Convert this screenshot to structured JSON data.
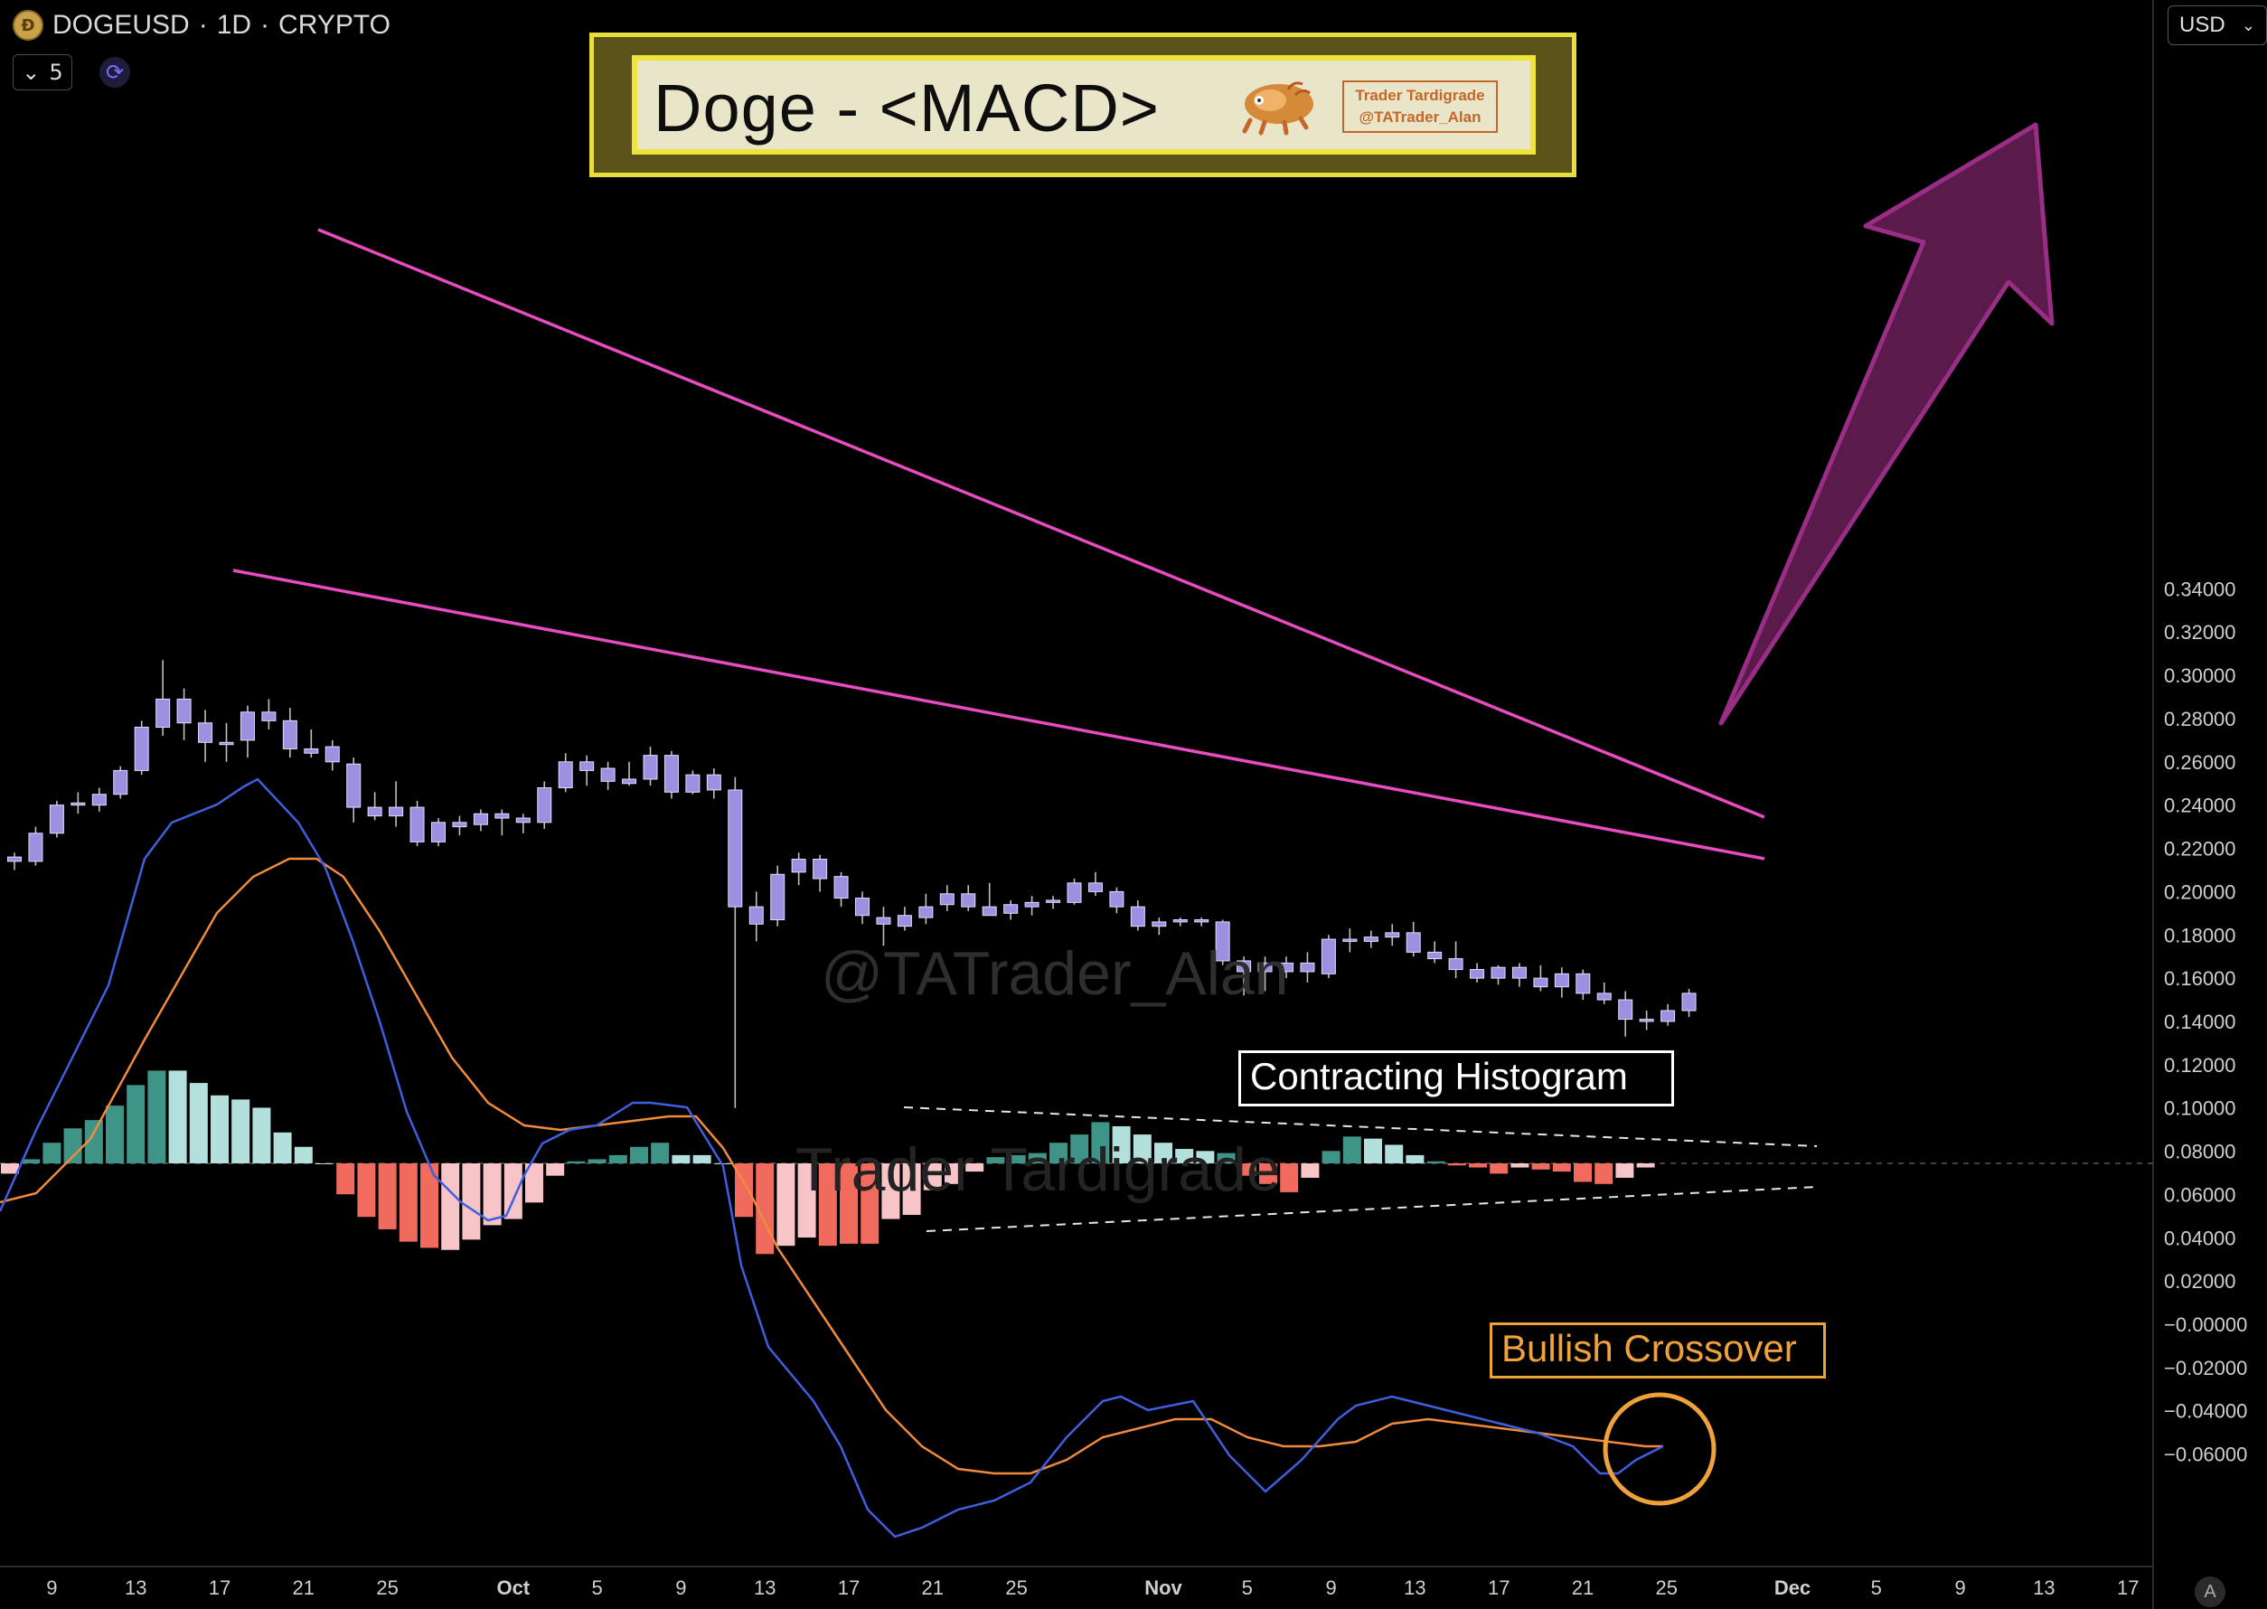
{
  "header": {
    "symbol": "DOGEUSD",
    "interval": "1D",
    "market": "CRYPTO",
    "separator": "·",
    "indicator_count": "5",
    "currency": "USD"
  },
  "title_banner": {
    "title": "Doge - <MACD>",
    "brand_line1": "Trader Tardigrade",
    "brand_line2": "@TATrader_Alan"
  },
  "watermarks": {
    "handle": "@TATrader_Alan",
    "name": "Trader Tardigrade"
  },
  "annotations": {
    "contracting": "Contracting Histogram",
    "crossover": "Bullish Crossover"
  },
  "colors": {
    "candle_body": "#9e8fe0",
    "candle_wick": "#bfbfbf",
    "trendline": "#e94bc0",
    "macd_line": "#3f5fe0",
    "signal_line": "#f08a3c",
    "hist_pos_strong": "#3f9488",
    "hist_pos_weak": "#b3e0dc",
    "hist_neg_strong": "#f06a5e",
    "hist_neg_weak": "#f7c4c7",
    "arrow_fill": "#5a1a4a",
    "arrow_stroke": "#9a2e86",
    "annotation_white": "#ffffff",
    "annotation_orange": "#f0a23a"
  },
  "chart_data": {
    "type": "candlestick",
    "title": "Doge - <MACD>",
    "y_axis": {
      "ylim": [
        -0.068,
        0.35
      ],
      "ticks": [
        0.34,
        0.32,
        0.3,
        0.28,
        0.26,
        0.24,
        0.22,
        0.2,
        0.18,
        0.16,
        0.14,
        0.12,
        0.1,
        0.08,
        0.06,
        0.04,
        0.02,
        -0.0,
        -0.02,
        -0.04,
        -0.06
      ],
      "tick_labels": [
        "0.34000",
        "0.32000",
        "0.30000",
        "0.28000",
        "0.26000",
        "0.24000",
        "0.22000",
        "0.20000",
        "0.18000",
        "0.16000",
        "0.14000",
        "0.12000",
        "0.10000",
        "0.08000",
        "0.06000",
        "0.04000",
        "0.02000",
        "−0.00000",
        "−0.02000",
        "−0.04000",
        "−0.06000"
      ]
    },
    "x_axis": {
      "range_days": [
        -0.8,
        50.2
      ],
      "day0_date": "Sep 7",
      "ticks": [
        {
          "day": 2,
          "label": "9"
        },
        {
          "day": 6,
          "label": "13"
        },
        {
          "day": 10,
          "label": "17"
        },
        {
          "day": 14,
          "label": "21"
        },
        {
          "day": 18,
          "label": "25"
        },
        {
          "day": 24,
          "label": "Oct",
          "bold": true
        },
        {
          "day": 28,
          "label": "5"
        },
        {
          "day": 32,
          "label": "9"
        },
        {
          "day": 36,
          "label": "13"
        },
        {
          "day": 40,
          "label": "17"
        },
        {
          "day": 44,
          "label": "21"
        },
        {
          "day": 48,
          "label": "25"
        },
        {
          "day": 55,
          "label": "Nov",
          "bold": true
        },
        {
          "day": 59,
          "label": "5"
        },
        {
          "day": 63,
          "label": "9"
        },
        {
          "day": 67,
          "label": "13"
        },
        {
          "day": 71,
          "label": "17"
        },
        {
          "day": 75,
          "label": "21"
        },
        {
          "day": 79,
          "label": "25"
        },
        {
          "day": 85,
          "label": "Dec",
          "bold": true
        },
        {
          "day": 89,
          "label": "5"
        },
        {
          "day": 93,
          "label": "9"
        },
        {
          "day": 97,
          "label": "13"
        },
        {
          "day": 101,
          "label": "17"
        }
      ]
    },
    "candles": [
      {
        "d": 0,
        "o": 0.214,
        "h": 0.218,
        "l": 0.21,
        "c": 0.216
      },
      {
        "d": 1,
        "o": 0.214,
        "h": 0.23,
        "l": 0.212,
        "c": 0.227
      },
      {
        "d": 2,
        "o": 0.227,
        "h": 0.242,
        "l": 0.225,
        "c": 0.24
      },
      {
        "d": 3,
        "o": 0.24,
        "h": 0.246,
        "l": 0.236,
        "c": 0.241
      },
      {
        "d": 4,
        "o": 0.24,
        "h": 0.248,
        "l": 0.237,
        "c": 0.245
      },
      {
        "d": 5,
        "o": 0.245,
        "h": 0.258,
        "l": 0.243,
        "c": 0.256
      },
      {
        "d": 6,
        "o": 0.256,
        "h": 0.279,
        "l": 0.254,
        "c": 0.276
      },
      {
        "d": 7,
        "o": 0.276,
        "h": 0.307,
        "l": 0.272,
        "c": 0.289
      },
      {
        "d": 8,
        "o": 0.289,
        "h": 0.294,
        "l": 0.27,
        "c": 0.278
      },
      {
        "d": 9,
        "o": 0.278,
        "h": 0.284,
        "l": 0.26,
        "c": 0.269
      },
      {
        "d": 10,
        "o": 0.269,
        "h": 0.278,
        "l": 0.26,
        "c": 0.268
      },
      {
        "d": 11,
        "o": 0.27,
        "h": 0.286,
        "l": 0.262,
        "c": 0.283
      },
      {
        "d": 12,
        "o": 0.283,
        "h": 0.289,
        "l": 0.275,
        "c": 0.279
      },
      {
        "d": 13,
        "o": 0.279,
        "h": 0.285,
        "l": 0.262,
        "c": 0.266
      },
      {
        "d": 14,
        "o": 0.266,
        "h": 0.275,
        "l": 0.262,
        "c": 0.264
      },
      {
        "d": 15,
        "o": 0.267,
        "h": 0.27,
        "l": 0.256,
        "c": 0.26
      },
      {
        "d": 16,
        "o": 0.259,
        "h": 0.262,
        "l": 0.232,
        "c": 0.239
      },
      {
        "d": 17,
        "o": 0.239,
        "h": 0.246,
        "l": 0.233,
        "c": 0.235
      },
      {
        "d": 18,
        "o": 0.239,
        "h": 0.251,
        "l": 0.23,
        "c": 0.235
      },
      {
        "d": 19,
        "o": 0.239,
        "h": 0.242,
        "l": 0.221,
        "c": 0.223
      },
      {
        "d": 20,
        "o": 0.223,
        "h": 0.234,
        "l": 0.221,
        "c": 0.232
      },
      {
        "d": 21,
        "o": 0.23,
        "h": 0.235,
        "l": 0.226,
        "c": 0.232
      },
      {
        "d": 22,
        "o": 0.231,
        "h": 0.238,
        "l": 0.228,
        "c": 0.236
      },
      {
        "d": 23,
        "o": 0.236,
        "h": 0.238,
        "l": 0.226,
        "c": 0.234
      },
      {
        "d": 24,
        "o": 0.232,
        "h": 0.236,
        "l": 0.227,
        "c": 0.234
      },
      {
        "d": 25,
        "o": 0.232,
        "h": 0.251,
        "l": 0.229,
        "c": 0.248
      },
      {
        "d": 26,
        "o": 0.248,
        "h": 0.264,
        "l": 0.246,
        "c": 0.26
      },
      {
        "d": 27,
        "o": 0.26,
        "h": 0.263,
        "l": 0.249,
        "c": 0.256
      },
      {
        "d": 28,
        "o": 0.257,
        "h": 0.26,
        "l": 0.247,
        "c": 0.251
      },
      {
        "d": 29,
        "o": 0.252,
        "h": 0.26,
        "l": 0.249,
        "c": 0.25
      },
      {
        "d": 30,
        "o": 0.252,
        "h": 0.267,
        "l": 0.249,
        "c": 0.263
      },
      {
        "d": 31,
        "o": 0.263,
        "h": 0.265,
        "l": 0.243,
        "c": 0.246
      },
      {
        "d": 32,
        "o": 0.246,
        "h": 0.256,
        "l": 0.245,
        "c": 0.254
      },
      {
        "d": 33,
        "o": 0.254,
        "h": 0.257,
        "l": 0.243,
        "c": 0.247
      },
      {
        "d": 34,
        "o": 0.247,
        "h": 0.253,
        "l": 0.1,
        "c": 0.193
      },
      {
        "d": 35,
        "o": 0.185,
        "h": 0.2,
        "l": 0.177,
        "c": 0.193
      },
      {
        "d": 36,
        "o": 0.187,
        "h": 0.212,
        "l": 0.184,
        "c": 0.208
      },
      {
        "d": 37,
        "o": 0.209,
        "h": 0.218,
        "l": 0.203,
        "c": 0.215
      },
      {
        "d": 38,
        "o": 0.215,
        "h": 0.217,
        "l": 0.2,
        "c": 0.206
      },
      {
        "d": 39,
        "o": 0.207,
        "h": 0.209,
        "l": 0.193,
        "c": 0.197
      },
      {
        "d": 40,
        "o": 0.197,
        "h": 0.2,
        "l": 0.185,
        "c": 0.189
      },
      {
        "d": 41,
        "o": 0.185,
        "h": 0.193,
        "l": 0.175,
        "c": 0.188
      },
      {
        "d": 42,
        "o": 0.184,
        "h": 0.193,
        "l": 0.182,
        "c": 0.189
      },
      {
        "d": 43,
        "o": 0.188,
        "h": 0.199,
        "l": 0.185,
        "c": 0.193
      },
      {
        "d": 44,
        "o": 0.194,
        "h": 0.203,
        "l": 0.191,
        "c": 0.199
      },
      {
        "d": 45,
        "o": 0.199,
        "h": 0.203,
        "l": 0.191,
        "c": 0.193
      },
      {
        "d": 46,
        "o": 0.193,
        "h": 0.204,
        "l": 0.189,
        "c": 0.189
      },
      {
        "d": 47,
        "o": 0.19,
        "h": 0.196,
        "l": 0.187,
        "c": 0.194
      },
      {
        "d": 48,
        "o": 0.195,
        "h": 0.198,
        "l": 0.189,
        "c": 0.193
      },
      {
        "d": 49,
        "o": 0.195,
        "h": 0.198,
        "l": 0.192,
        "c": 0.196
      },
      {
        "d": 50,
        "o": 0.195,
        "h": 0.206,
        "l": 0.194,
        "c": 0.204
      }
    ]
  }
}
